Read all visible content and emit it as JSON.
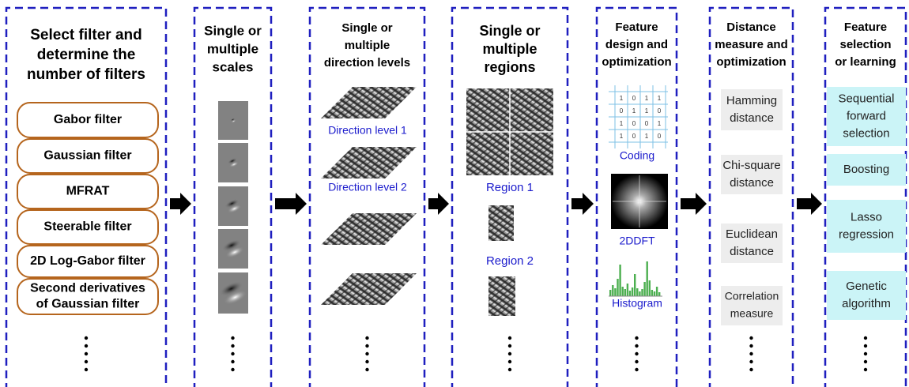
{
  "columns": [
    {
      "title": [
        "Select filter and",
        "determine the",
        "number of filters"
      ],
      "items": [
        [
          "Gabor filter"
        ],
        [
          "Gaussian filter"
        ],
        [
          "MFRAT"
        ],
        [
          "Steerable filter"
        ],
        [
          "2D Log-Gabor filter"
        ],
        [
          "Second derivatives",
          "of Gaussian filter"
        ]
      ]
    },
    {
      "title": [
        "Single or",
        "multiple",
        "scales"
      ]
    },
    {
      "title": [
        "Single or",
        "multiple",
        "direction levels"
      ],
      "labels": [
        "Direction level 1",
        "Direction level 2"
      ]
    },
    {
      "title": [
        "Single or",
        "multiple",
        "regions"
      ],
      "labels": [
        "Region 1",
        "Region 2"
      ]
    },
    {
      "title": [
        "Feature",
        "design and",
        "optimization"
      ],
      "labels": [
        "Coding",
        "2DDFT",
        "Histogram"
      ],
      "coding_grid": [
        [
          "1",
          "0",
          "1",
          "1"
        ],
        [
          "0",
          "1",
          "1",
          "0"
        ],
        [
          "1",
          "0",
          "0",
          "1"
        ],
        [
          "1",
          "0",
          "1",
          "0"
        ]
      ]
    },
    {
      "title": [
        "Distance",
        "measure and",
        "optimization"
      ],
      "items": [
        [
          "Hamming",
          "distance"
        ],
        [
          "Chi-square",
          "distance"
        ],
        [
          "Euclidean",
          "distance"
        ],
        [
          "Correlation",
          "measure"
        ]
      ]
    },
    {
      "title": [
        "Feature",
        "selection",
        "or learning"
      ],
      "items": [
        [
          "Sequential",
          "forward",
          "selection"
        ],
        [
          "Boosting"
        ],
        [
          "Lasso",
          "regression"
        ],
        [
          "Genetic",
          "algorithm"
        ]
      ]
    }
  ]
}
